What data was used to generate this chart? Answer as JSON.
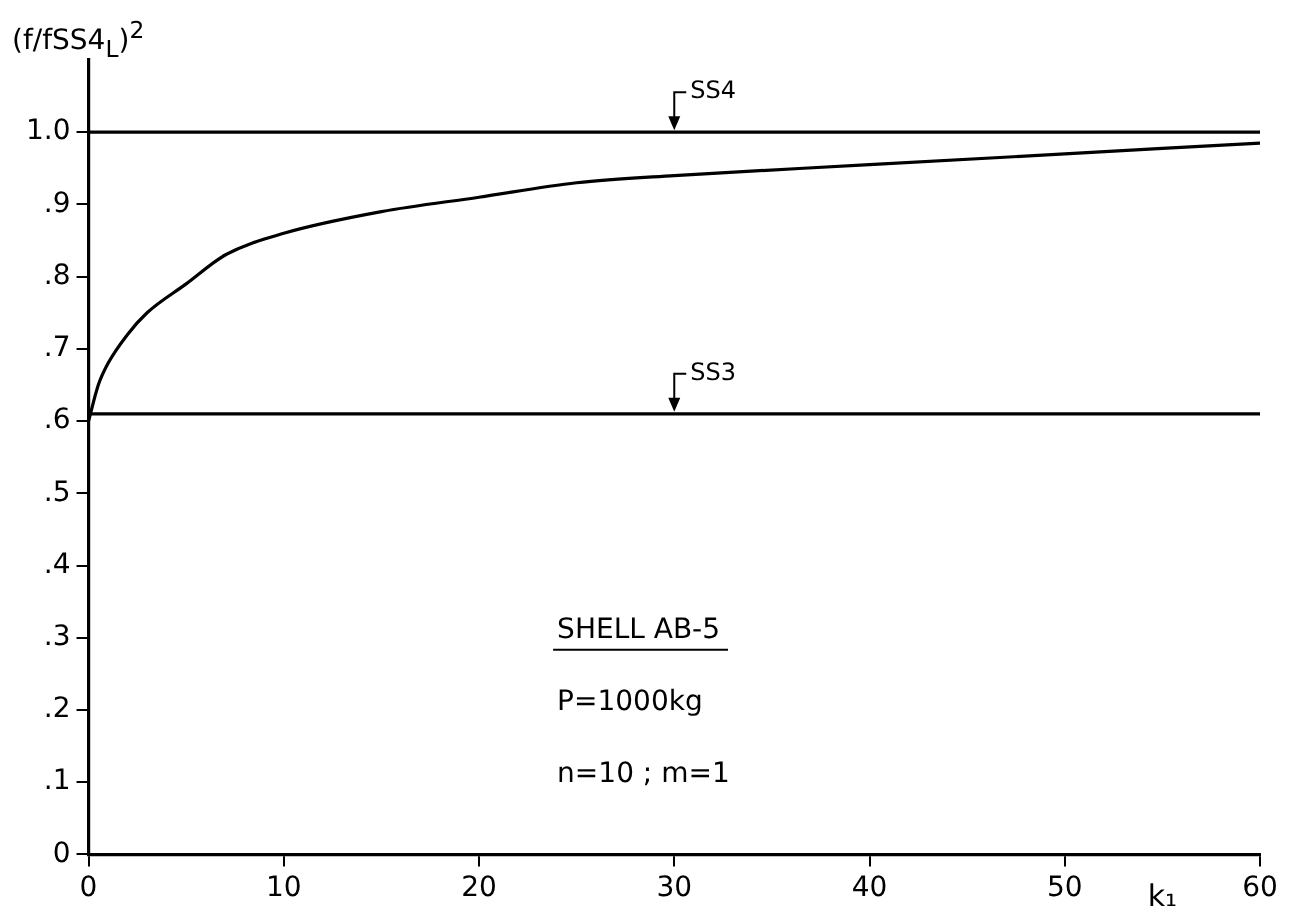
{
  "chart_data": {
    "type": "line",
    "ylabel": "(f/fSS4$_{L}$)$^{2}$",
    "xlabel": "k₁",
    "x": [
      0,
      0.5,
      1,
      2,
      3,
      5,
      7,
      10,
      15,
      20,
      25,
      30,
      40,
      50,
      60
    ],
    "series": [
      {
        "color": "#000000",
        "values": [
          0.6,
          0.65,
          0.68,
          0.72,
          0.75,
          0.79,
          0.83,
          0.86,
          0.89,
          0.91,
          0.93,
          0.94,
          0.955,
          0.97,
          0.985
        ]
      }
    ],
    "xlim": [
      0,
      60
    ],
    "xticks": [
      0,
      10,
      20,
      30,
      40,
      50,
      60
    ],
    "ylim": [
      0,
      1.1
    ],
    "yticks": [
      0,
      {
        "value": 0.1,
        "label": ".1"
      },
      {
        "value": 0.2,
        "label": ".2"
      },
      {
        "value": 0.3,
        "label": ".3"
      },
      {
        "value": 0.4,
        "label": ".4"
      },
      {
        "value": 0.5,
        "label": ".5"
      },
      {
        "value": 0.6,
        "label": ".6"
      },
      {
        "value": 0.7,
        "label": ".7"
      },
      {
        "value": 0.8,
        "label": ".8"
      },
      {
        "value": 0.9,
        "label": ".9"
      },
      {
        "value": 1.0,
        "label": "1.0"
      }
    ],
    "ref_lines": [
      {
        "axis": "y",
        "value": 1.0,
        "label": "SS4",
        "color": "#000000"
      },
      {
        "axis": "y",
        "value": 0.61,
        "label": "SS3",
        "color": "#000000"
      }
    ],
    "annotations": [
      "SHELL AB-5",
      "P=1000kg",
      "n=10 ; m=1"
    ],
    "grid": false,
    "legend": false,
    "marker": "none",
    "line_style": "solid"
  }
}
